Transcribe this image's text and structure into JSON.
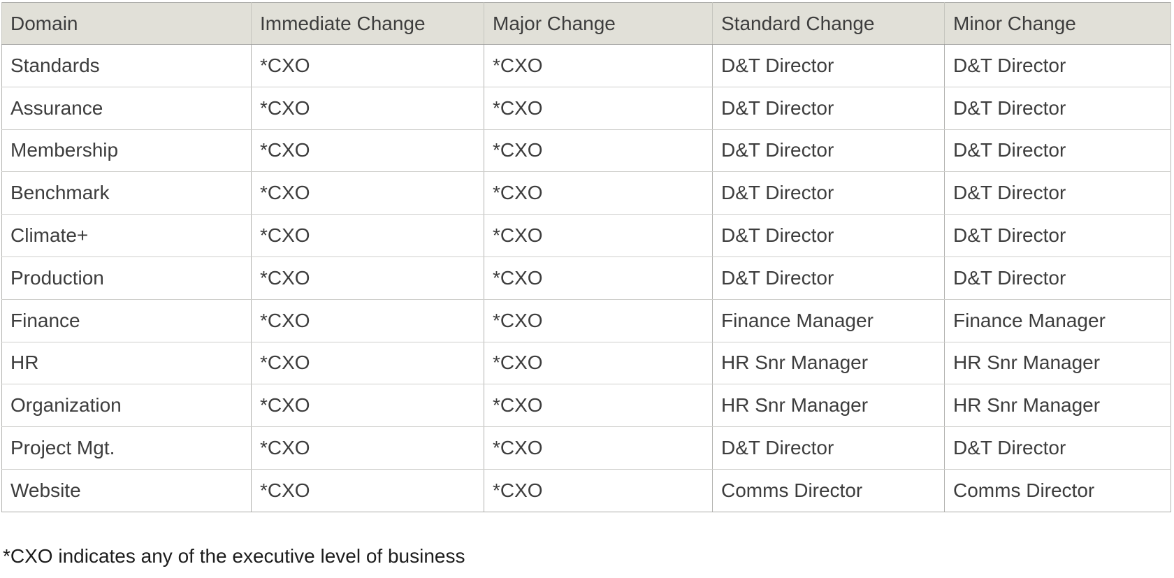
{
  "table": {
    "columns": [
      "Domain",
      "Immediate Change",
      "Major Change",
      "Standard Change",
      "Minor Change"
    ],
    "rows": [
      [
        "Standards",
        "*CXO",
        "*CXO",
        "D&T Director",
        "D&T Director"
      ],
      [
        "Assurance",
        "*CXO",
        "*CXO",
        "D&T Director",
        "D&T Director"
      ],
      [
        "Membership",
        "*CXO",
        "*CXO",
        "D&T Director",
        "D&T Director"
      ],
      [
        "Benchmark",
        "*CXO",
        "*CXO",
        "D&T Director",
        "D&T Director"
      ],
      [
        "Climate+",
        "*CXO",
        "*CXO",
        "D&T Director",
        "D&T Director"
      ],
      [
        "Production",
        "*CXO",
        "*CXO",
        "D&T Director",
        "D&T Director"
      ],
      [
        "Finance",
        "*CXO",
        "*CXO",
        "Finance Manager",
        "Finance Manager"
      ],
      [
        "HR",
        "*CXO",
        "*CXO",
        "HR Snr Manager",
        "HR Snr Manager"
      ],
      [
        "Organization",
        "*CXO",
        "*CXO",
        "HR Snr Manager",
        "HR Snr Manager"
      ],
      [
        "Project Mgt.",
        "*CXO",
        "*CXO",
        "D&T Director",
        "D&T Director"
      ],
      [
        "Website",
        "*CXO",
        "*CXO",
        "Comms Director",
        "Comms Director"
      ]
    ],
    "colors": {
      "header_bg": "#e1e0d8",
      "vertical_border": "#b3b3b0",
      "horizontal_border": "#cfcfcc",
      "text": "#3d3d3d",
      "footnote_text": "#1c1c1c"
    }
  },
  "footnote": "*CXO indicates any of the executive level of business"
}
